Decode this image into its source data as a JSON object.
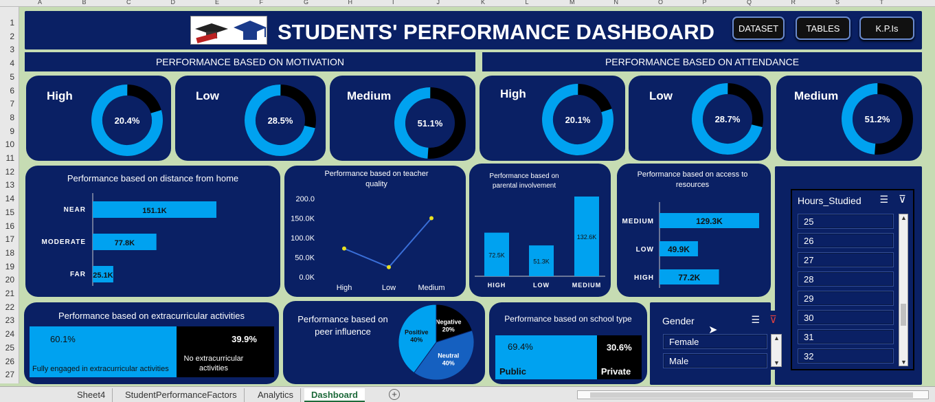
{
  "columns": [
    "A",
    "B",
    "C",
    "D",
    "E",
    "F",
    "G",
    "H",
    "I",
    "J",
    "K",
    "L",
    "M",
    "N",
    "O",
    "P",
    "Q",
    "R",
    "S",
    "T"
  ],
  "rows": [
    "1",
    "2",
    "3",
    "4",
    "5",
    "6",
    "7",
    "8",
    "9",
    "10",
    "11",
    "12",
    "13",
    "14",
    "15",
    "16",
    "17",
    "18",
    "19",
    "20",
    "21",
    "22",
    "23",
    "24",
    "25",
    "26",
    "27"
  ],
  "header": {
    "title": "STUDENTS' PERFORMANCE DASHBOARD",
    "nav_buttons": [
      "DATASET",
      "TABLES",
      "K.P.Is"
    ]
  },
  "sections": {
    "motivation": "PERFORMANCE BASED ON MOTIVATION",
    "attendance": "PERFORMANCE BASED ON ATTENDANCE"
  },
  "kpis": [
    {
      "label": "High",
      "value_text": "20.4%",
      "value": 20.4
    },
    {
      "label": "Low",
      "value_text": "28.5%",
      "value": 28.5
    },
    {
      "label": "Medium",
      "value_text": "51.1%",
      "value": 51.1
    },
    {
      "label": "High",
      "value_text": "20.1%",
      "value": 20.1
    },
    {
      "label": "Low",
      "value_text": "28.7%",
      "value": 28.7
    },
    {
      "label": "Medium",
      "value_text": "51.2%",
      "value": 51.2
    }
  ],
  "chart_data": [
    {
      "type": "bar",
      "title": "Performance based on distance from home",
      "categories": [
        "NEAR",
        "MODERATE",
        "FAR"
      ],
      "values": [
        151.1,
        77.8,
        25.1
      ],
      "labels": [
        "151.1K",
        "77.8K",
        "25.1K"
      ],
      "orientation": "horizontal"
    },
    {
      "type": "line",
      "title": "Performance based on teacher quality",
      "categories": [
        "High",
        "Low",
        "Medium"
      ],
      "values": [
        72.5,
        25.0,
        150.0
      ],
      "yticks": [
        "0.0K",
        "50.0K",
        "100.0K",
        "150.0K",
        "200.0"
      ],
      "ylim": [
        0,
        200
      ]
    },
    {
      "type": "bar",
      "title": "Performance based on parental involvement",
      "categories": [
        "HIGH",
        "LOW",
        "MEDIUM"
      ],
      "values": [
        72.5,
        51.3,
        132.6
      ],
      "labels": [
        "72.5K",
        "51.3K",
        "132.6K"
      ],
      "orientation": "vertical"
    },
    {
      "type": "bar",
      "title": "Performance based on access to resources",
      "categories": [
        "MEDIUM",
        "LOW",
        "HIGH"
      ],
      "values": [
        129.3,
        49.9,
        77.2
      ],
      "labels": [
        "129.3K",
        "49.9K",
        "77.2K"
      ],
      "orientation": "horizontal"
    },
    {
      "type": "bar",
      "title": "Performance based on extracurricular activities",
      "segments": [
        {
          "name": "Fully engaged in extracurricular activities",
          "value": 60.1,
          "label": "60.1%"
        },
        {
          "name": "No extracurricular activities",
          "value": 39.9,
          "label": "39.9%"
        }
      ]
    },
    {
      "type": "pie",
      "title": "Performance based on peer influence",
      "slices": [
        {
          "name": "Negative",
          "value": 20,
          "label": "20%"
        },
        {
          "name": "Neutral",
          "value": 40,
          "label": "40%"
        },
        {
          "name": "Positive",
          "value": 40,
          "label": "40%"
        }
      ]
    },
    {
      "type": "bar",
      "title": "Performance based on  school type",
      "segments": [
        {
          "name": "Public",
          "value": 69.4,
          "label": "69.4%"
        },
        {
          "name": "Private",
          "value": 30.6,
          "label": "30.6%"
        }
      ]
    }
  ],
  "slicers": {
    "gender": {
      "title": "Gender",
      "items": [
        "Female",
        "Male"
      ]
    },
    "hours": {
      "title": "Hours_Studied",
      "items": [
        "25",
        "26",
        "27",
        "28",
        "29",
        "30",
        "31",
        "32"
      ]
    }
  },
  "sheet_tabs": [
    "Sheet4",
    "StudentPerformanceFactors",
    "Analytics",
    "Dashboard"
  ],
  "colors": {
    "panel": "#0a2064",
    "accent": "#00a2f0",
    "dark": "#000000",
    "background": "#c6dcb3"
  }
}
